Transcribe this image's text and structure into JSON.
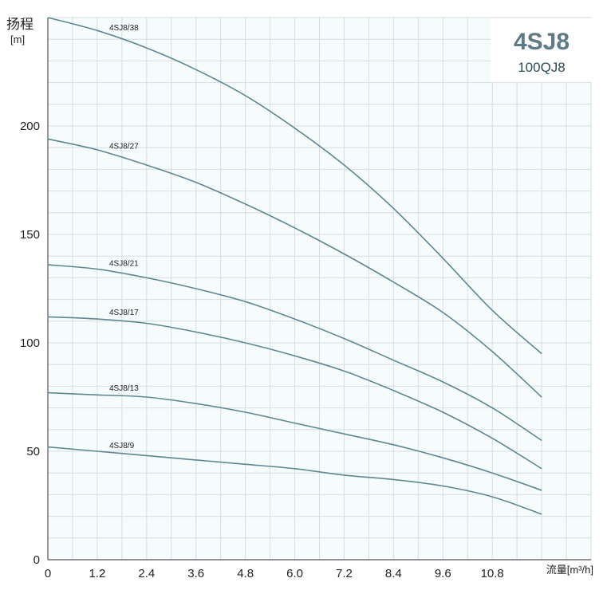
{
  "chart_data": {
    "type": "line",
    "ylabel": "扬程",
    "ylabel_unit": "[m]",
    "xlabel": "流量[m³/h]",
    "xlim": [
      0,
      13.2
    ],
    "ylim": [
      0,
      250
    ],
    "x_ticks": [
      "0",
      "1.2",
      "2.4",
      "3.6",
      "4.8",
      "6.0",
      "7.2",
      "8.4",
      "9.6",
      "10.8"
    ],
    "x_tick_values": [
      0,
      1.2,
      2.4,
      3.6,
      4.8,
      6.0,
      7.2,
      8.4,
      9.6,
      10.8
    ],
    "y_ticks": [
      "0",
      "50",
      "100",
      "150",
      "200"
    ],
    "y_tick_values": [
      0,
      50,
      100,
      150,
      200
    ],
    "grid": true,
    "minor_grid_step_x": 0.6,
    "minor_grid_step_y": 10,
    "line_color": "#5f8791",
    "grid_color": "#d6dee2",
    "plot_background": "#f6fbfc",
    "x": [
      0,
      1.2,
      2.4,
      3.6,
      4.8,
      6.0,
      7.2,
      8.4,
      9.6,
      10.8,
      12.0
    ],
    "series": [
      {
        "name": "4SJ8/38",
        "values": [
          250,
          244,
          236,
          226,
          214,
          199,
          182,
          162,
          139,
          115,
          95
        ]
      },
      {
        "name": "4SJ8/27",
        "values": [
          194,
          189,
          182,
          174,
          164,
          153,
          141,
          128,
          114,
          96,
          75
        ]
      },
      {
        "name": "4SJ8/21",
        "values": [
          136,
          134,
          130,
          125,
          119,
          111,
          102,
          92,
          82,
          70,
          55
        ]
      },
      {
        "name": "4SJ8/17",
        "values": [
          112,
          111,
          109,
          105,
          100,
          94,
          87,
          78,
          68,
          56,
          42
        ]
      },
      {
        "name": "4SJ8/13",
        "values": [
          77,
          76,
          75,
          72,
          68,
          63,
          58,
          53,
          47,
          40,
          32
        ]
      },
      {
        "name": "4SJ8/9",
        "values": [
          52,
          50,
          48,
          46,
          44,
          42,
          39,
          37,
          34,
          29,
          21
        ]
      }
    ],
    "legend": "inline-labels"
  },
  "brand": {
    "title": "4SJ8",
    "subtitle": "100QJ8"
  }
}
